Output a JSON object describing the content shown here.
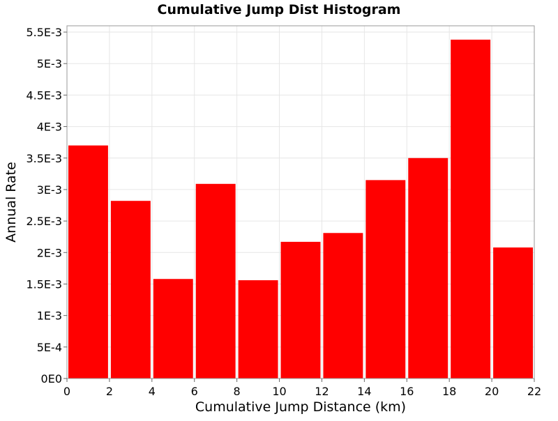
{
  "chart_data": {
    "type": "bar",
    "title": "Cumulative Jump Dist Histogram",
    "xlabel": "Cumulative Jump Distance (km)",
    "ylabel": "Annual Rate",
    "xlim": [
      0,
      22
    ],
    "ylim": [
      0,
      0.0056
    ],
    "grid": true,
    "x_ticks": [
      0,
      2,
      4,
      6,
      8,
      10,
      12,
      14,
      16,
      18,
      20,
      22
    ],
    "x_tick_labels": [
      "0",
      "2",
      "4",
      "6",
      "8",
      "10",
      "12",
      "14",
      "16",
      "18",
      "20",
      "22"
    ],
    "y_ticks": [
      0,
      0.0005,
      0.001,
      0.0015,
      0.002,
      0.0025,
      0.003,
      0.0035,
      0.004,
      0.0045,
      0.005,
      0.0055
    ],
    "y_tick_labels": [
      "0E0",
      "5E-4",
      "1E-3",
      "1.5E-3",
      "2E-3",
      "2.5E-3",
      "3E-3",
      "3.5E-3",
      "4E-3",
      "4.5E-3",
      "5E-3",
      "5.5E-3"
    ],
    "bins": [
      {
        "x0": 0,
        "x1": 2,
        "value": 0.0037
      },
      {
        "x0": 2,
        "x1": 4,
        "value": 0.00282
      },
      {
        "x0": 4,
        "x1": 6,
        "value": 0.00158
      },
      {
        "x0": 6,
        "x1": 8,
        "value": 0.00309
      },
      {
        "x0": 8,
        "x1": 10,
        "value": 0.00156
      },
      {
        "x0": 10,
        "x1": 12,
        "value": 0.00217
      },
      {
        "x0": 12,
        "x1": 14,
        "value": 0.00231
      },
      {
        "x0": 14,
        "x1": 16,
        "value": 0.00315
      },
      {
        "x0": 16,
        "x1": 18,
        "value": 0.0035
      },
      {
        "x0": 18,
        "x1": 20,
        "value": 0.00538
      },
      {
        "x0": 20,
        "x1": 22,
        "value": 0.00208
      }
    ],
    "bar_color": "#ff0000",
    "grid_color": "#e6e6e6"
  }
}
